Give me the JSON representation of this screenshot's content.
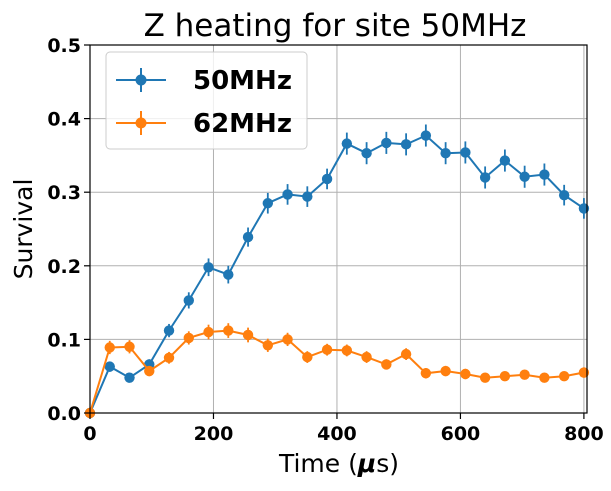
{
  "chart_data": {
    "type": "line",
    "title": "Z heating for site 50MHz",
    "xlabel": "Time (",
    "xlabel_symbol": "μ",
    "xlabel_unit": "s)",
    "ylabel": "Survival",
    "xlim": [
      0,
      805
    ],
    "ylim": [
      0,
      0.5
    ],
    "x_ticks": [
      0,
      200,
      400,
      600,
      800
    ],
    "y_ticks": [
      "0.0",
      "0.1",
      "0.2",
      "0.3",
      "0.4",
      "0.5"
    ],
    "x_tick_labels": [
      "0",
      "200",
      "400",
      "600",
      "800"
    ],
    "grid": true,
    "legend_position": "upper-left",
    "error_bars": true,
    "x": [
      0,
      32,
      64,
      96,
      128,
      160,
      192,
      224,
      256,
      288,
      320,
      352,
      384,
      416,
      448,
      480,
      512,
      544,
      576,
      608,
      640,
      672,
      704,
      736,
      768,
      800
    ],
    "series": [
      {
        "name": "50MHz",
        "color": "#1f77b4",
        "values": [
          0.0,
          0.063,
          0.048,
          0.066,
          0.112,
          0.153,
          0.198,
          0.188,
          0.239,
          0.285,
          0.297,
          0.294,
          0.318,
          0.366,
          0.353,
          0.367,
          0.365,
          0.377,
          0.353,
          0.354,
          0.32,
          0.343,
          0.321,
          0.324,
          0.296,
          0.278
        ],
        "errors": [
          0.0,
          0.007,
          0.006,
          0.007,
          0.009,
          0.011,
          0.012,
          0.012,
          0.013,
          0.014,
          0.014,
          0.014,
          0.014,
          0.015,
          0.015,
          0.015,
          0.015,
          0.015,
          0.015,
          0.015,
          0.015,
          0.015,
          0.015,
          0.015,
          0.014,
          0.014
        ]
      },
      {
        "name": "62MHz",
        "color": "#ff7f0e",
        "values": [
          0.0,
          0.089,
          0.09,
          0.057,
          0.075,
          0.102,
          0.11,
          0.112,
          0.106,
          0.092,
          0.1,
          0.076,
          0.086,
          0.085,
          0.076,
          0.066,
          0.08,
          0.054,
          0.057,
          0.053,
          0.048,
          0.05,
          0.052,
          0.048,
          0.05,
          0.055
        ],
        "errors": [
          0.0,
          0.009,
          0.009,
          0.007,
          0.008,
          0.009,
          0.01,
          0.01,
          0.01,
          0.009,
          0.009,
          0.008,
          0.008,
          0.008,
          0.008,
          0.007,
          0.008,
          0.007,
          0.007,
          0.007,
          0.006,
          0.006,
          0.006,
          0.006,
          0.006,
          0.007
        ]
      }
    ]
  }
}
